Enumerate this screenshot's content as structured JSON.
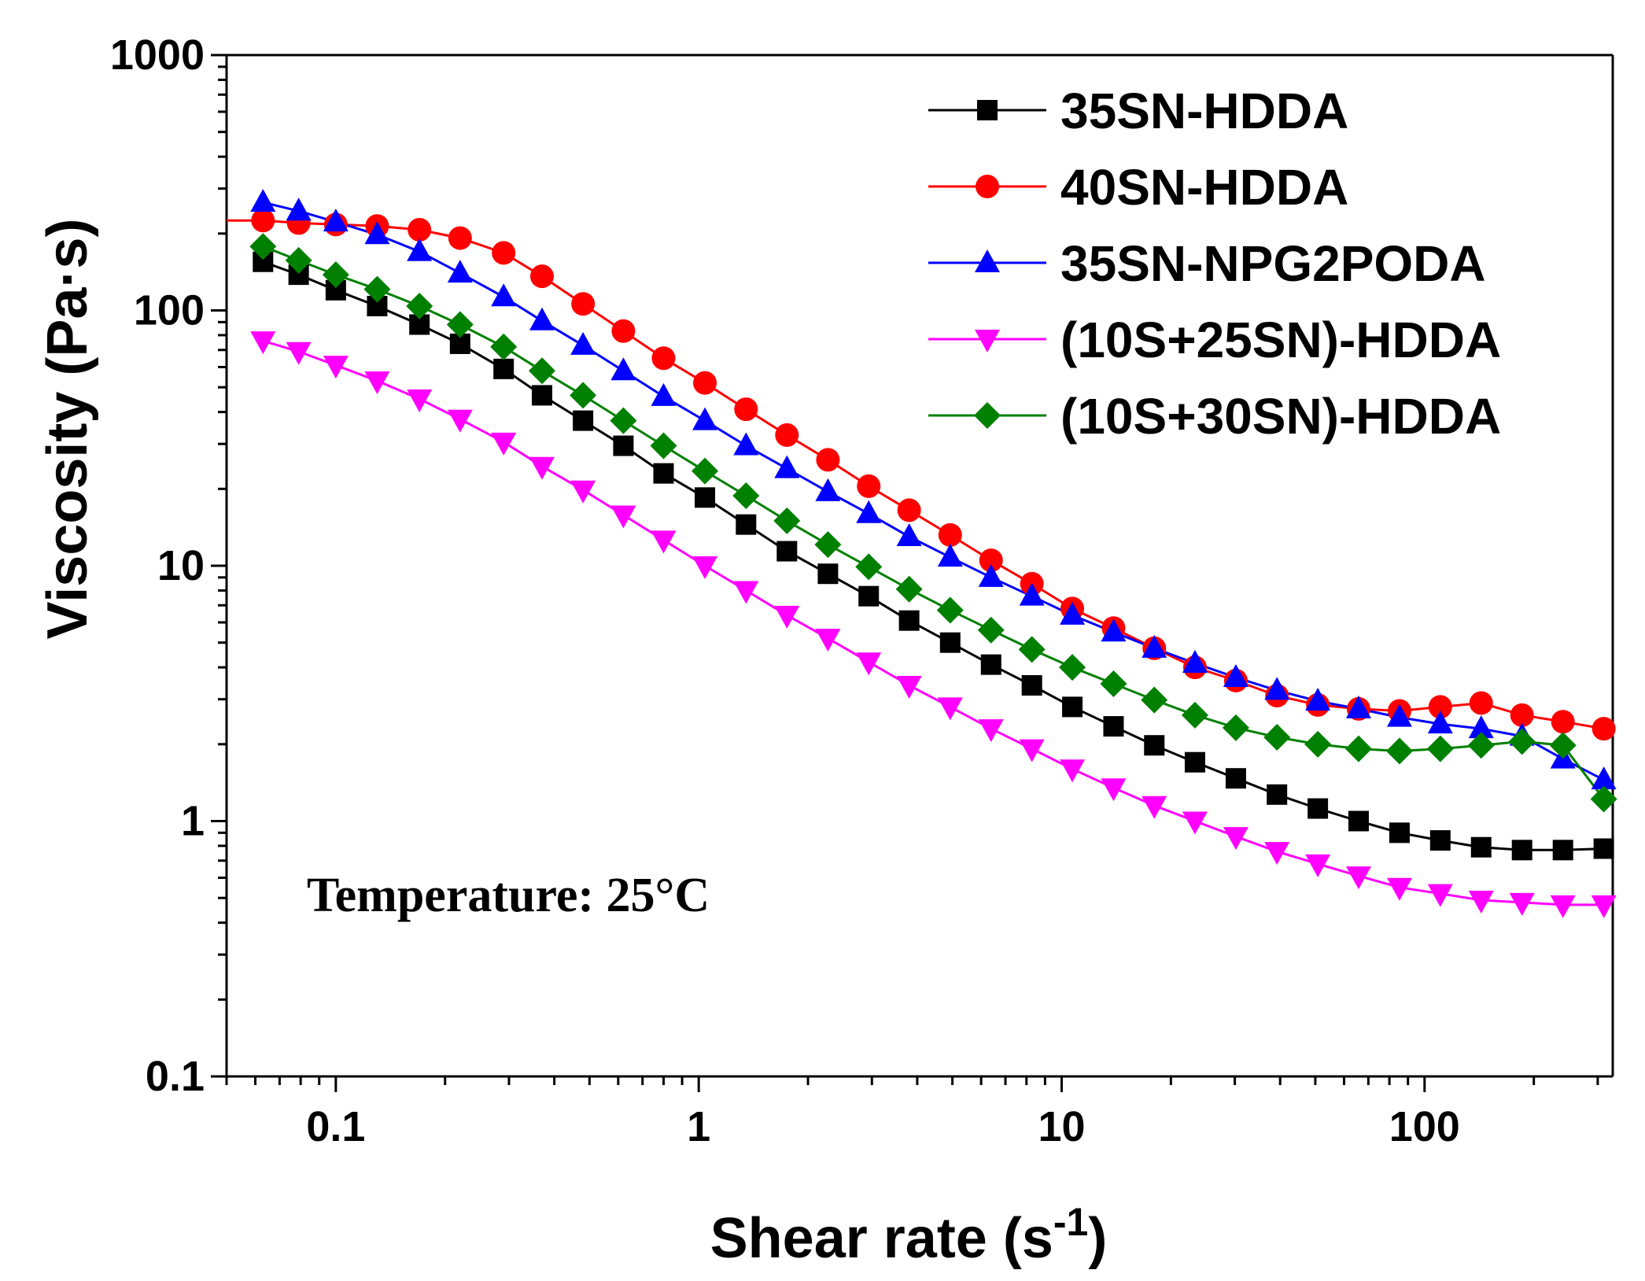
{
  "chart_data": {
    "type": "line",
    "title": "",
    "xlabel": "Shear rate (s",
    "xlabel_sup": "-1",
    "xlabel_close": ")",
    "ylabel": "Viscosity (Pa·s)",
    "xscale": "log",
    "yscale": "log",
    "xlim": [
      0.05,
      330
    ],
    "ylim": [
      0.1,
      1000
    ],
    "xticks": [
      0.1,
      1,
      10,
      100
    ],
    "xtick_labels": [
      "0.1",
      "1",
      "10",
      "100"
    ],
    "yticks": [
      0.1,
      1,
      10,
      100,
      1000
    ],
    "ytick_labels": [
      "0.1",
      "1",
      "10",
      "100",
      "1000"
    ],
    "annotation": "Temperature: 25°C",
    "legend_position": "top-right",
    "x": [
      0.063,
      0.079,
      0.1,
      0.13,
      0.17,
      0.22,
      0.29,
      0.37,
      0.48,
      0.62,
      0.8,
      1.04,
      1.35,
      1.75,
      2.27,
      2.94,
      3.8,
      4.93,
      6.39,
      8.28,
      10.7,
      13.9,
      18.0,
      23.3,
      30.2,
      39.2,
      50.8,
      65.8,
      85.3,
      110.5,
      143.2,
      185.6,
      240.6,
      311.8
    ],
    "series": [
      {
        "name": "35SN-HDDA",
        "color": "#000000",
        "marker": "square",
        "values": [
          155,
          138,
          120,
          104,
          88,
          74,
          59,
          46.5,
          37,
          29.5,
          23,
          18.5,
          14.5,
          11.4,
          9.3,
          7.6,
          6.1,
          5.0,
          4.1,
          3.4,
          2.8,
          2.35,
          1.98,
          1.7,
          1.47,
          1.27,
          1.12,
          1.0,
          0.9,
          0.84,
          0.79,
          0.77,
          0.77,
          0.78
        ]
      },
      {
        "name": "40SN-HDDA",
        "color": "#ff0000",
        "marker": "circle",
        "values": [
          225,
          220,
          217,
          214,
          207,
          192,
          168,
          136,
          106,
          83,
          65,
          52,
          41,
          32.5,
          26,
          20.5,
          16.5,
          13.2,
          10.5,
          8.5,
          6.8,
          5.7,
          4.75,
          4.0,
          3.55,
          3.1,
          2.85,
          2.75,
          2.7,
          2.8,
          2.9,
          2.6,
          2.45,
          2.3
        ]
      },
      {
        "name": "35SN-NPG2PODA",
        "color": "#0000ff",
        "marker": "triangle-up",
        "values": [
          265,
          245,
          222,
          198,
          170,
          140,
          113,
          91,
          73,
          58,
          46,
          37,
          29.5,
          24,
          19.5,
          16,
          13,
          10.8,
          9.0,
          7.6,
          6.4,
          5.5,
          4.75,
          4.15,
          3.65,
          3.25,
          2.95,
          2.75,
          2.55,
          2.4,
          2.3,
          2.15,
          1.75,
          1.45
        ]
      },
      {
        "name": "(10S+25SN)-HDDA",
        "color": "#ff00ff",
        "marker": "triangle-down",
        "values": [
          76,
          69,
          61,
          53,
          45,
          37.5,
          30.5,
          24.5,
          19.8,
          15.8,
          12.6,
          10.0,
          8.0,
          6.4,
          5.2,
          4.2,
          3.4,
          2.8,
          2.3,
          1.92,
          1.6,
          1.35,
          1.15,
          1.0,
          0.87,
          0.76,
          0.68,
          0.61,
          0.55,
          0.52,
          0.49,
          0.48,
          0.47,
          0.47
        ]
      },
      {
        "name": "(10S+30SN)-HDDA",
        "color": "#008000",
        "marker": "diamond",
        "values": [
          178,
          157,
          138,
          121,
          104,
          88,
          72,
          58,
          46.5,
          37,
          29.5,
          23.5,
          18.8,
          15,
          12.1,
          9.9,
          8.1,
          6.7,
          5.6,
          4.7,
          4.0,
          3.45,
          2.98,
          2.6,
          2.32,
          2.13,
          2.0,
          1.92,
          1.88,
          1.92,
          1.98,
          2.05,
          1.98,
          1.22
        ]
      }
    ]
  }
}
